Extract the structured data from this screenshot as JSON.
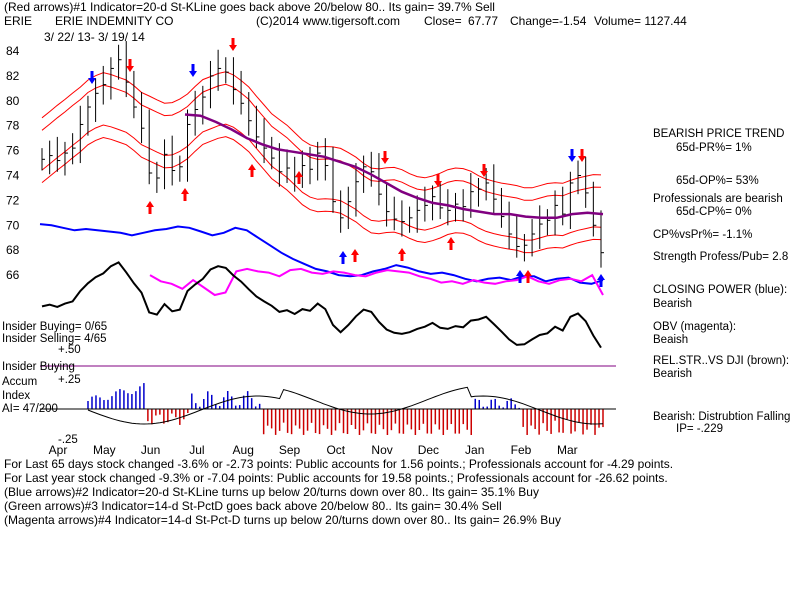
{
  "header": {
    "line1_a": "(Red arrows)#1 Indicator=20-d St-KLine goes back above 20/below 80..  Its gain= 39.7% Sell",
    "ticker": "ERIE",
    "company": "ERIE INDEMNITY CO",
    "copyright": "(C)2014 www.tigersoft.com",
    "close_label": "Close=",
    "close": "67.77",
    "change": "Change=-1.54",
    "volume": "Volume= 1127.44",
    "date_range": "3/ 22/ 13-  3/ 19/ 14"
  },
  "panel_labels": {
    "insider_buying_count": "Insider Buying=  0/65",
    "insider_selling_count": "Insider Selling= 4/65",
    "plus50": "+.50",
    "insider_buying": "Insider Buying",
    "accum": "Accum",
    "plus25": "+.25",
    "index": "Index",
    "ai": "AI= 47/200",
    "minus25": "-.25"
  },
  "sidebar": {
    "trend_title": "BEARISH PRICE TREND",
    "pr": "65d-PR%= 1%",
    "op": "65d-OP%= 53%",
    "professionals": "Professionals are bearish",
    "cp": "65d-CP%= 0%",
    "cpvspr": "CP%vsPr%= -1.1%",
    "strength": "Strength Profess/Pub= 2.8",
    "closing_power_title": "CLOSING POWER (blue):",
    "closing_power_value": "Bearish",
    "obv_title": "OBV (magenta):",
    "obv_value": "Beaish",
    "relstr_title": "REL.STR..VS DJI (brown):",
    "relstr_value": "Bearish",
    "distribution": "Bearish:  Distrubtion Falling",
    "ip": "IP= -.229"
  },
  "footer": {
    "line1": "For Last 65 days stock changed -3.6% or -2.73 points:  Public accounts for  1.56 points.;  Professionals account for -4.29 points.",
    "line2": "For Last year stock changed -9.3% or -7.04 points:  Public accounts for  19.58 points.;  Professionals account for -26.62 points.",
    "line3": "(Blue arrows)#2 Indicator=20-d St-KLine turns up below 20/turns down over 80..  Its gain= 35.1% Buy",
    "line4": "(Green arrows)#3 Indicator=14-d St-PctD goes back above 20/below 80..  Its gain= 30.4% Sell",
    "line5": "(Magenta arrows)#4 Indicator=14-d St-Pct-D turns up below 20/turns down over 80..  Its gain= 26.9% Buy"
  },
  "colors": {
    "price": "#000000",
    "bands": "#ff0000",
    "ma": "#800080",
    "closing_power": "#0000ff",
    "obv": "#ff00ff",
    "relstr": "#000000",
    "accum_pos": "#0000cc",
    "accum_neg": "#cc0000",
    "buy_arrow": "#ff0000",
    "sell_arrow": "#0000ff"
  },
  "chart_data": {
    "type": "line",
    "title": "ERIE INDEMNITY CO",
    "ylim": [
      64,
      86
    ],
    "yticks": [
      "84",
      "82",
      "80",
      "78",
      "76",
      "74",
      "72",
      "70",
      "68",
      "66"
    ],
    "ytick_values": [
      84,
      82,
      80,
      78,
      76,
      74,
      72,
      70,
      68,
      66
    ],
    "months": [
      "Apr",
      "May",
      "Jun",
      "Jul",
      "Aug",
      "Sep",
      "Oct",
      "Nov",
      "Dec",
      "Jan",
      "Feb",
      "Mar"
    ],
    "series": [
      {
        "name": "Close",
        "values": [
          75.3,
          75.6,
          75.2,
          75.8,
          76.2,
          78.1,
          79.5,
          80.6,
          81.3,
          82.6,
          83.3,
          81.5,
          79.5,
          77.8,
          74.2,
          73.8,
          75.7,
          74.4,
          74.7,
          78.1,
          79.3,
          80.3,
          82.0,
          82.6,
          82.3,
          80.9,
          79.8,
          78.4,
          77.1,
          76.2,
          75.4,
          74.3,
          74.6,
          73.9,
          74.8,
          74.5,
          75.8,
          74.8,
          71.9,
          70.6,
          71.9,
          73.5,
          74.7,
          74.3,
          72.5,
          71.1,
          70.5,
          70.3,
          70.6,
          71.2,
          71.6,
          72.3,
          71.4,
          71.2,
          71.7,
          71.5,
          72.7,
          72.9,
          73.4,
          72.1,
          70.7,
          69.3,
          68.3,
          68.4,
          69.3,
          70.1,
          70.4,
          71.6,
          70.9,
          73.4,
          74.0,
          72.6,
          70.0,
          67.8
        ]
      },
      {
        "name": "",
        "values": [
          78.9,
          78.8,
          78.3,
          77.7,
          77.0,
          76.5,
          76.1,
          75.9,
          75.7,
          75.5,
          75.1,
          74.7,
          74.1,
          73.4,
          72.7,
          72.2,
          71.8,
          71.6,
          71.3,
          71.1,
          70.9,
          70.9,
          70.7,
          70.6,
          70.6,
          70.9,
          71.0,
          70.9
        ]
      },
      {
        "name": "",
        "values": [
          70.1,
          70.0,
          69.8,
          69.6,
          69.7,
          69.6,
          69.5,
          69.4,
          69.2,
          69.4,
          69.6,
          69.7,
          69.9,
          69.8,
          69.5,
          69.2,
          69.4,
          69.8,
          69.6,
          69.0,
          68.4,
          67.8,
          67.3,
          66.9,
          66.5,
          66.3,
          66.0,
          65.9,
          66.0,
          66.3,
          66.5,
          66.8,
          66.6,
          66.3,
          66.1,
          66.2,
          66.0,
          65.7,
          65.5,
          65.7,
          65.8,
          65.6,
          65.9,
          65.9,
          65.5,
          65.7,
          65.8,
          65.4,
          65.3,
          65.6
        ]
      },
      {
        "name": "",
        "values": [
          66.0,
          65.5,
          65.3,
          64.9,
          65.6,
          65.0,
          64.4,
          64.6,
          66.3,
          66.5,
          66.3,
          66.2,
          65.9,
          66.4,
          66.5,
          66.2,
          66.1,
          66.3,
          66.2,
          66.0,
          65.9,
          66.2,
          66.4,
          66.3,
          66.2,
          65.9,
          65.7,
          65.4,
          65.5,
          65.3,
          65.6,
          65.4,
          65.3,
          65.5,
          65.6,
          65.9,
          65.5,
          65.3,
          65.6,
          65.7,
          65.5,
          66.0,
          64.4
        ]
      }
    ]
  }
}
